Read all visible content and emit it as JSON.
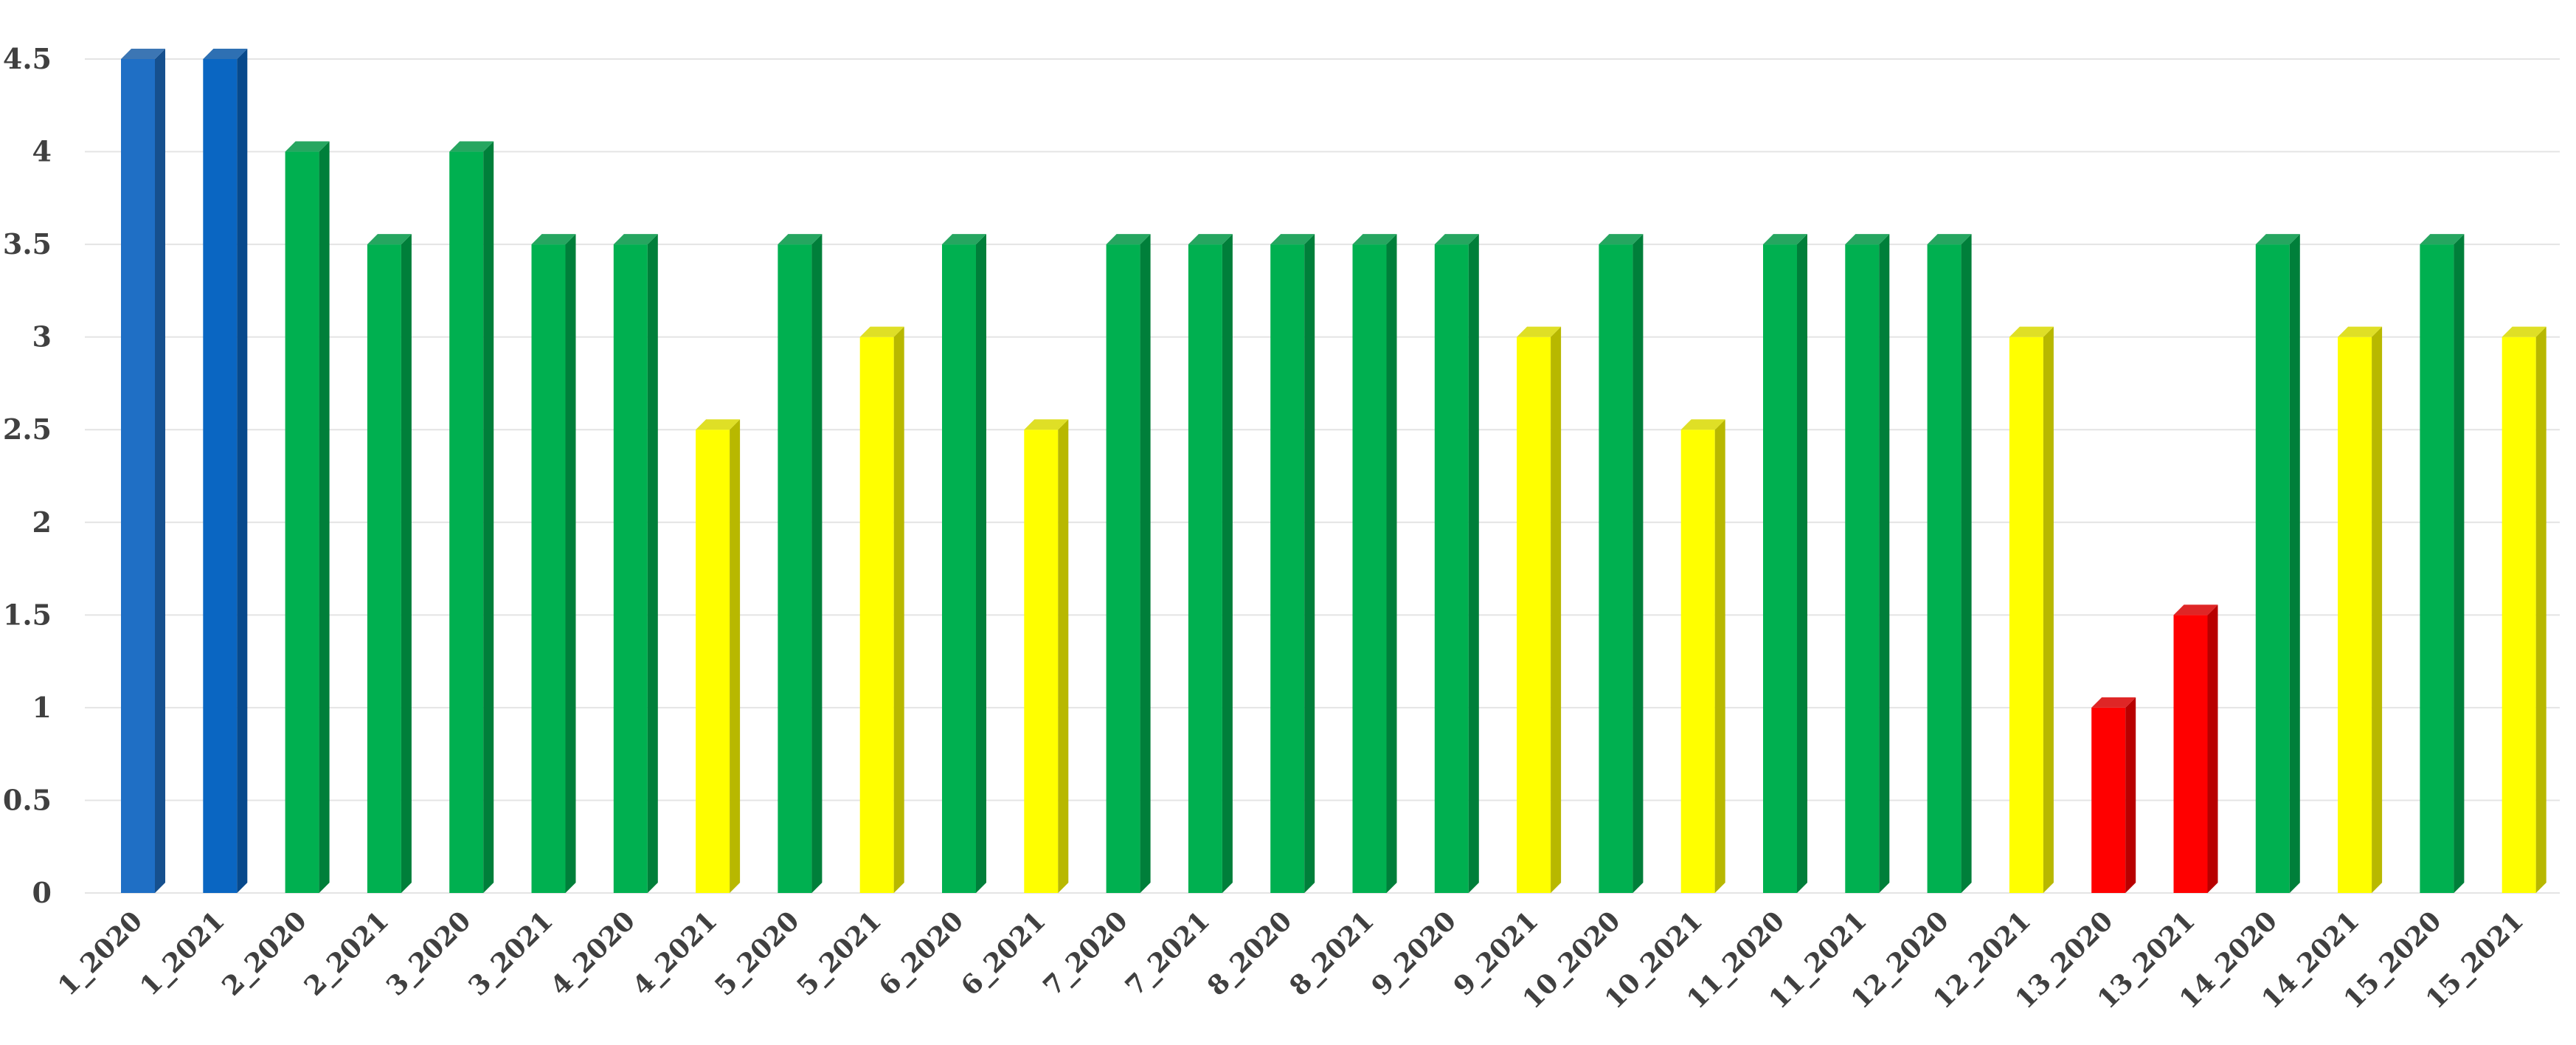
{
  "chart_data": {
    "type": "bar",
    "title": "",
    "xlabel": "",
    "ylabel": "",
    "ylim": [
      0,
      4.5
    ],
    "grid": true,
    "legend": "none",
    "yticks": [
      "0",
      "0.5",
      "1",
      "1.5",
      "2",
      "2.5",
      "3",
      "3.5",
      "4",
      "4.5"
    ],
    "categories": [
      "1_2020",
      "1_2021",
      "2_2020",
      "2_2021",
      "3_2020",
      "3_2021",
      "4_2020",
      "4_2021",
      "5_2020",
      "5_2021",
      "6_2020",
      "6_2021",
      "7_2020",
      "7_2021",
      "8_2020",
      "8_2021",
      "9_2020",
      "9_2021",
      "10_2020",
      "10_2021",
      "11_2020",
      "11_2021",
      "12_2020",
      "12_2021",
      "13_2020",
      "13_2021",
      "14_2020",
      "14_2021",
      "15_2020",
      "15_2021"
    ],
    "values": [
      4.5,
      4.5,
      4,
      3.5,
      4,
      3.5,
      3.5,
      2.5,
      3.5,
      3,
      3.5,
      2.5,
      3.5,
      3.5,
      3.5,
      3.5,
      3.5,
      3,
      3.5,
      2.5,
      3.5,
      3.5,
      3.5,
      3,
      1,
      1.5,
      3.5,
      3,
      3.5,
      3
    ],
    "bar_colors": [
      "#1f6fc5",
      "#0a66c2",
      "#00b050",
      "#00b050",
      "#00b050",
      "#00b050",
      "#00b050",
      "#ffff00",
      "#00b050",
      "#ffff00",
      "#00b050",
      "#ffff00",
      "#00b050",
      "#00b050",
      "#00b050",
      "#00b050",
      "#00b050",
      "#ffff00",
      "#00b050",
      "#ffff00",
      "#00b050",
      "#00b050",
      "#00b050",
      "#ffff00",
      "#ff0000",
      "#ff0000",
      "#00b050",
      "#ffff00",
      "#00b050",
      "#ffff00"
    ],
    "gridline_color": "#e4e4e4"
  }
}
